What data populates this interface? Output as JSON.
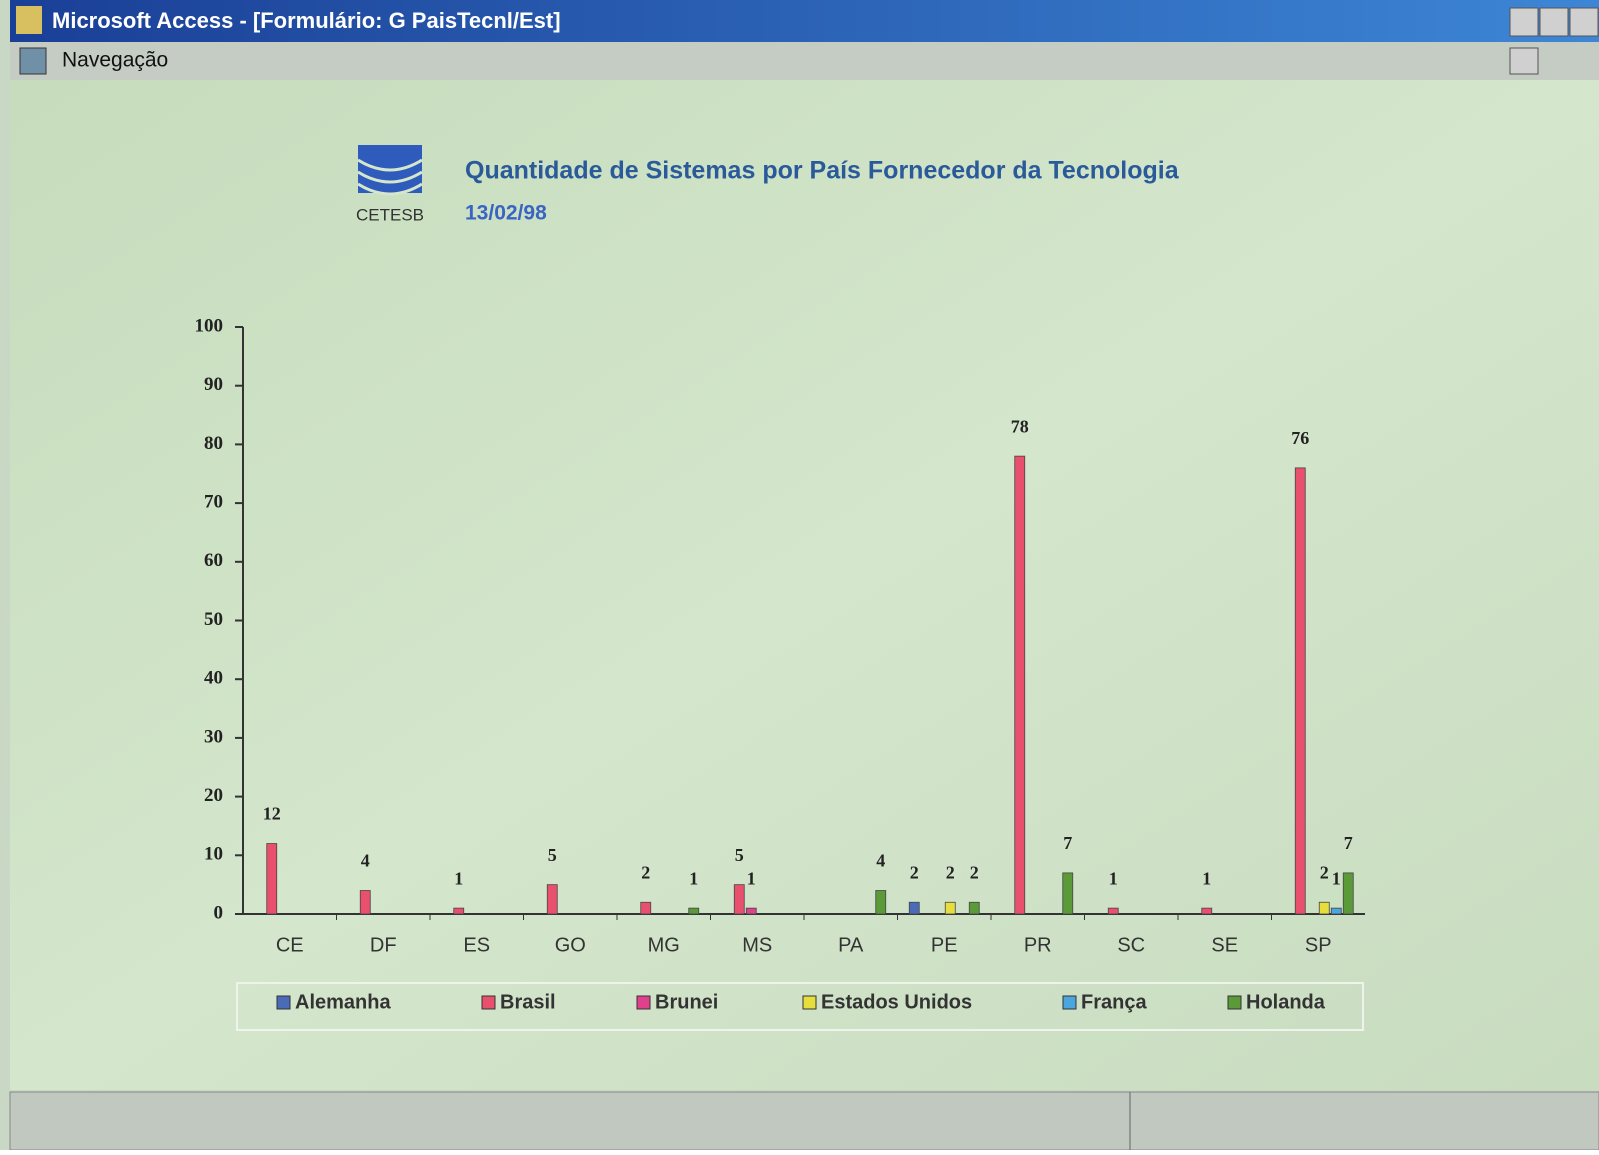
{
  "window": {
    "title": "Microsoft Access - [Formulário: G PaisTecnl/Est]",
    "menu": "Navegação"
  },
  "logo": "CETESB",
  "chart_data": {
    "type": "bar",
    "title": "Quantidade de Sistemas por País Fornecedor da Tecnologia",
    "subtitle": "13/02/98",
    "categories": [
      "CE",
      "DF",
      "ES",
      "GO",
      "MG",
      "MS",
      "PA",
      "PE",
      "PR",
      "SC",
      "SE",
      "SP"
    ],
    "series": [
      {
        "name": "Alemanha",
        "color": "#4a6cb8",
        "values": [
          null,
          null,
          null,
          null,
          null,
          null,
          null,
          2,
          null,
          null,
          null,
          null
        ]
      },
      {
        "name": "Brasil",
        "color": "#e8506e",
        "values": [
          12,
          4,
          1,
          5,
          2,
          5,
          null,
          null,
          78,
          1,
          1,
          76
        ]
      },
      {
        "name": "Brunei",
        "color": "#e0408c",
        "values": [
          null,
          null,
          null,
          null,
          null,
          1,
          null,
          null,
          null,
          null,
          null,
          null
        ]
      },
      {
        "name": "Estados Unidos",
        "color": "#e6de3c",
        "values": [
          null,
          null,
          null,
          null,
          null,
          null,
          null,
          2,
          null,
          null,
          null,
          2
        ]
      },
      {
        "name": "França",
        "color": "#4aa6dc",
        "values": [
          null,
          null,
          null,
          null,
          null,
          null,
          null,
          null,
          null,
          null,
          null,
          1
        ]
      },
      {
        "name": "Holanda",
        "color": "#5a9a38",
        "values": [
          null,
          null,
          null,
          null,
          1,
          null,
          4,
          2,
          7,
          null,
          null,
          7
        ]
      }
    ],
    "ylim": [
      0,
      100
    ],
    "yticks": [
      0,
      10,
      20,
      30,
      40,
      50,
      60,
      70,
      80,
      90,
      100
    ],
    "grid": false,
    "legend": "bottom"
  }
}
